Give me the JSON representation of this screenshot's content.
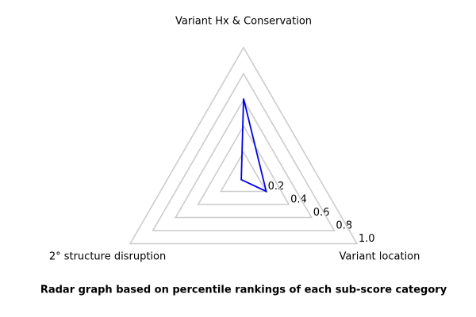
{
  "chart_data": {
    "type": "radar",
    "title": "Radar graph based on percentile rankings of each sub-score category",
    "categories": [
      "Variant Hx & Conservation",
      "Variant location",
      "2° structure disruption"
    ],
    "values": [
      0.61,
      0.2,
      0.02
    ],
    "color": "#0000ee",
    "grid_color": "#cccccc",
    "rlim": [
      0,
      1
    ],
    "rticks": [
      0.2,
      0.4,
      0.6,
      0.8,
      {
        "value": 1,
        "label": "1.0"
      }
    ],
    "grid": true
  }
}
